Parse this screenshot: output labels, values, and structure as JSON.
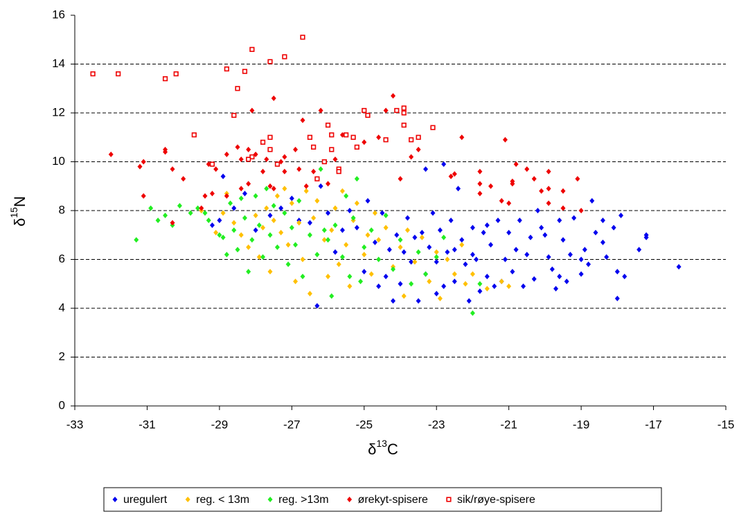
{
  "chart_data": {
    "type": "scatter",
    "xlabel": [
      "δ",
      "13",
      "C"
    ],
    "ylabel": [
      "δ",
      "15",
      "N"
    ],
    "xlim": [
      -33,
      -15
    ],
    "xticks": [
      -33,
      -31,
      -29,
      -27,
      -25,
      -23,
      -21,
      -19,
      -17,
      -15
    ],
    "ylim": [
      0,
      16
    ],
    "yticks": [
      0,
      2,
      4,
      6,
      8,
      10,
      12,
      14,
      16
    ],
    "grid": true,
    "legend": "bottom",
    "series": [
      {
        "name": "uregulert",
        "color": "#0000ee",
        "marker": "diamond",
        "x": [
          -16.3,
          -17.4,
          -17.2,
          -17.2,
          -17.8,
          -18.0,
          -18.0,
          -17.9,
          -18.1,
          -18.3,
          -18.4,
          -18.4,
          -18.7,
          -18.6,
          -18.8,
          -18.9,
          -19.0,
          -19.2,
          -19.3,
          -19.4,
          -19.5,
          -19.6,
          -19.7,
          -19.8,
          -19.9,
          -20.1,
          -20.2,
          -20.3,
          -20.4,
          -20.6,
          -20.7,
          -20.8,
          -20.9,
          -21.0,
          -21.1,
          -21.3,
          -21.4,
          -21.5,
          -21.6,
          -21.7,
          -21.8,
          -21.9,
          -22.0,
          -22.1,
          -22.2,
          -22.3,
          -22.4,
          -22.5,
          -22.6,
          -22.7,
          -22.8,
          -22.8,
          -22.9,
          -23.0,
          -23.1,
          -23.2,
          -23.3,
          -23.3,
          -23.4,
          -23.5,
          -23.6,
          -23.7,
          -23.8,
          -23.9,
          -24.0,
          -24.1,
          -24.2,
          -24.3,
          -24.4,
          -24.5,
          -24.6,
          -24.7,
          -24.9,
          -25.0,
          -25.2,
          -25.4,
          -25.6,
          -25.8,
          -26.0,
          -26.2,
          -26.3,
          -26.5,
          -26.8,
          -27.0,
          -27.3,
          -27.6,
          -28.0,
          -28.3,
          -28.6,
          -28.9,
          -29.0,
          -29.2,
          -22.0,
          -21.2,
          -20.5,
          -19.0,
          -23.0,
          -22.5,
          -21.6,
          -20.0,
          -19.6
        ],
        "values": [
          5.7,
          6.4,
          7.0,
          6.9,
          5.3,
          4.4,
          5.5,
          7.8,
          7.3,
          6.1,
          6.7,
          7.6,
          8.4,
          7.1,
          5.8,
          6.4,
          5.4,
          7.7,
          6.2,
          5.1,
          6.8,
          7.6,
          4.8,
          5.6,
          6.1,
          7.3,
          8.0,
          5.2,
          6.9,
          4.9,
          7.6,
          6.4,
          5.5,
          7.1,
          6.0,
          7.6,
          4.9,
          6.6,
          5.3,
          7.1,
          4.7,
          6.0,
          7.3,
          4.3,
          5.8,
          6.8,
          8.9,
          5.1,
          7.6,
          6.3,
          9.9,
          4.9,
          7.2,
          5.9,
          7.9,
          6.5,
          9.7,
          5.4,
          7.1,
          4.3,
          6.9,
          5.9,
          7.7,
          6.3,
          5.0,
          7.0,
          4.3,
          6.4,
          5.3,
          7.9,
          4.9,
          6.7,
          8.4,
          5.5,
          7.3,
          8.0,
          7.2,
          6.3,
          7.9,
          9.0,
          4.1,
          7.5,
          7.6,
          8.5,
          8.1,
          7.8,
          7.2,
          8.7,
          8.1,
          9.4,
          7.6,
          7.4,
          6.2,
          5.1,
          6.2,
          6.0,
          4.6,
          6.4,
          7.4,
          7.0,
          5.3
        ]
      },
      {
        "name": "reg. < 13m",
        "color": "#ffc000",
        "marker": "diamond",
        "x": [
          -29.5,
          -29.1,
          -28.9,
          -28.6,
          -28.4,
          -28.2,
          -28.0,
          -27.8,
          -27.7,
          -27.6,
          -27.5,
          -27.4,
          -27.3,
          -27.2,
          -27.1,
          -27.0,
          -26.8,
          -26.7,
          -26.6,
          -26.5,
          -26.4,
          -26.3,
          -26.1,
          -26.0,
          -25.9,
          -25.8,
          -25.7,
          -25.6,
          -25.5,
          -25.4,
          -25.3,
          -25.2,
          -25.0,
          -24.8,
          -24.7,
          -24.6,
          -24.4,
          -24.2,
          -24.0,
          -23.9,
          -23.8,
          -23.6,
          -23.4,
          -23.2,
          -23.0,
          -22.9,
          -22.7,
          -22.5,
          -22.3,
          -22.2,
          -22.0,
          -21.6,
          -21.2,
          -21.0,
          -27.9,
          -28.8,
          -26.9,
          -24.9
        ],
        "values": [
          8.0,
          7.1,
          7.9,
          7.5,
          7.0,
          6.5,
          7.8,
          7.3,
          8.1,
          5.5,
          7.6,
          8.6,
          7.1,
          8.9,
          6.6,
          8.3,
          7.5,
          6.0,
          8.8,
          4.6,
          7.7,
          8.4,
          6.8,
          5.3,
          7.2,
          8.1,
          5.8,
          8.8,
          6.6,
          4.9,
          7.6,
          8.3,
          6.2,
          5.4,
          7.9,
          6.8,
          7.3,
          5.7,
          6.5,
          4.5,
          7.2,
          5.9,
          6.9,
          5.1,
          6.3,
          4.4,
          6.0,
          5.4,
          6.6,
          5.0,
          5.4,
          4.8,
          5.1,
          4.9,
          6.1,
          8.7,
          5.1,
          7.0
        ]
      },
      {
        "name": "reg. >13m",
        "color": "#22ee22",
        "marker": "diamond",
        "x": [
          -31.3,
          -30.9,
          -30.7,
          -30.5,
          -30.3,
          -30.1,
          -29.8,
          -29.6,
          -29.3,
          -29.0,
          -28.9,
          -28.8,
          -28.7,
          -28.6,
          -28.5,
          -28.4,
          -28.3,
          -28.2,
          -28.1,
          -28.0,
          -27.9,
          -27.8,
          -27.6,
          -27.5,
          -27.4,
          -27.2,
          -27.1,
          -27.0,
          -26.9,
          -26.8,
          -26.7,
          -26.5,
          -26.3,
          -26.2,
          -26.0,
          -25.9,
          -25.8,
          -25.6,
          -25.5,
          -25.4,
          -25.3,
          -25.2,
          -25.1,
          -25.0,
          -24.8,
          -24.6,
          -24.4,
          -24.2,
          -24.0,
          -23.7,
          -23.5,
          -23.3,
          -23.0,
          -22.8,
          -22.0,
          -21.8,
          -29.4,
          -27.7,
          -26.1
        ],
        "values": [
          6.8,
          8.1,
          7.6,
          7.8,
          7.4,
          8.2,
          7.9,
          8.1,
          7.6,
          7.0,
          6.9,
          6.2,
          8.3,
          7.2,
          6.4,
          8.5,
          7.7,
          5.5,
          6.8,
          8.6,
          7.4,
          6.1,
          7.0,
          8.2,
          6.5,
          7.9,
          5.8,
          7.3,
          6.6,
          8.4,
          5.3,
          7.0,
          6.2,
          9.7,
          6.8,
          4.5,
          7.4,
          6.1,
          8.6,
          5.3,
          7.7,
          9.3,
          5.1,
          6.5,
          7.2,
          6.0,
          7.8,
          5.6,
          6.8,
          5.0,
          6.3,
          5.4,
          6.1,
          6.9,
          3.8,
          5.0,
          7.9,
          8.9,
          7.2
        ]
      },
      {
        "name": "ørekyt-spisere",
        "color": "#ee0000",
        "marker": "diamond",
        "x": [
          -32.0,
          -31.2,
          -31.1,
          -31.1,
          -30.5,
          -30.5,
          -30.3,
          -30.3,
          -30.0,
          -29.5,
          -29.4,
          -29.3,
          -29.2,
          -29.1,
          -28.8,
          -28.8,
          -28.5,
          -28.4,
          -28.4,
          -28.2,
          -28.2,
          -28.1,
          -28.0,
          -27.8,
          -27.7,
          -27.5,
          -27.5,
          -27.2,
          -27.2,
          -27.3,
          -26.9,
          -26.8,
          -26.7,
          -26.6,
          -26.4,
          -26.2,
          -26.0,
          -25.8,
          -25.6,
          -25.0,
          -24.6,
          -24.4,
          -24.2,
          -24.0,
          -23.7,
          -23.5,
          -22.6,
          -22.5,
          -22.3,
          -21.8,
          -21.8,
          -21.8,
          -21.5,
          -21.2,
          -21.1,
          -21.0,
          -20.9,
          -20.9,
          -20.8,
          -20.5,
          -20.3,
          -20.1,
          -19.9,
          -19.9,
          -19.9,
          -19.5,
          -19.5,
          -19.1,
          -19.0,
          -27.6
        ],
        "values": [
          10.3,
          9.8,
          10.0,
          8.6,
          10.5,
          10.4,
          9.7,
          7.5,
          9.3,
          8.1,
          8.6,
          9.9,
          8.7,
          9.7,
          8.6,
          10.3,
          10.6,
          8.9,
          10.1,
          10.5,
          9.1,
          12.1,
          10.3,
          9.6,
          10.1,
          12.6,
          8.9,
          10.2,
          9.6,
          10.0,
          10.5,
          9.7,
          11.7,
          9.0,
          9.6,
          12.1,
          9.1,
          10.1,
          11.1,
          10.8,
          11.0,
          12.1,
          12.7,
          9.3,
          10.2,
          10.5,
          9.4,
          9.5,
          11.0,
          9.6,
          9.1,
          8.7,
          9.0,
          8.4,
          10.9,
          8.3,
          9.2,
          9.1,
          9.9,
          9.7,
          9.3,
          8.8,
          8.9,
          8.3,
          9.6,
          8.1,
          8.8,
          9.3,
          8.0,
          9.0
        ]
      },
      {
        "name": "sik/røye-spisere",
        "color": "#ee0000",
        "marker": "square",
        "x": [
          -32.5,
          -31.8,
          -30.5,
          -30.2,
          -29.7,
          -29.2,
          -28.8,
          -28.6,
          -28.3,
          -28.5,
          -28.1,
          -28.1,
          -27.6,
          -27.6,
          -27.6,
          -27.2,
          -26.7,
          -27.8,
          -27.4,
          -26.5,
          -26.4,
          -26.1,
          -26.0,
          -25.9,
          -25.9,
          -25.5,
          -25.7,
          -25.7,
          -25.3,
          -25.2,
          -25.0,
          -24.9,
          -24.4,
          -24.1,
          -23.9,
          -23.9,
          -23.9,
          -23.7,
          -23.5,
          -23.1,
          -26.3,
          -28.2
        ],
        "values": [
          13.6,
          13.6,
          13.4,
          13.6,
          11.1,
          9.9,
          13.8,
          11.9,
          13.7,
          13.0,
          14.6,
          10.2,
          14.1,
          11.0,
          10.5,
          14.3,
          15.1,
          10.8,
          9.9,
          11.0,
          10.6,
          10.0,
          11.5,
          11.1,
          10.5,
          11.1,
          9.7,
          9.6,
          11.0,
          10.6,
          12.1,
          11.9,
          10.9,
          12.1,
          12.2,
          12.0,
          11.5,
          10.9,
          11.0,
          11.4,
          9.3,
          10.1
        ]
      }
    ]
  }
}
